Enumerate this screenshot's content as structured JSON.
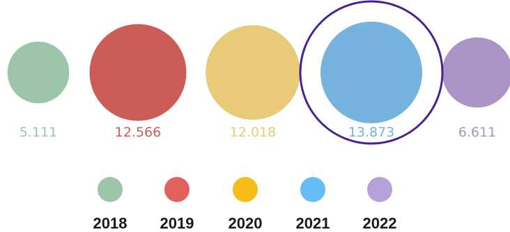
{
  "chart_data": {
    "type": "bubble",
    "title": "",
    "categories": [
      "2018",
      "2019",
      "2020",
      "2021",
      "2022"
    ],
    "values": [
      5.111,
      12.566,
      12.018,
      13.873,
      6.611
    ],
    "value_labels": [
      "5.111",
      "12.566",
      "12.018",
      "13.873",
      "6.611"
    ],
    "bubble_colors": [
      "#9cc5aa",
      "#cc5c57",
      "#e9ca78",
      "#76b3df",
      "#a994c5"
    ],
    "legend_colors": [
      "#9cc5aa",
      "#e2615f",
      "#f6bc18",
      "#64bdf6",
      "#b5a1d8"
    ],
    "highlighted": "2021",
    "highlight_color": "#4a2290",
    "legend": {
      "position": "bottom",
      "entries": [
        "2018",
        "2019",
        "2020",
        "2021",
        "2022"
      ]
    }
  }
}
